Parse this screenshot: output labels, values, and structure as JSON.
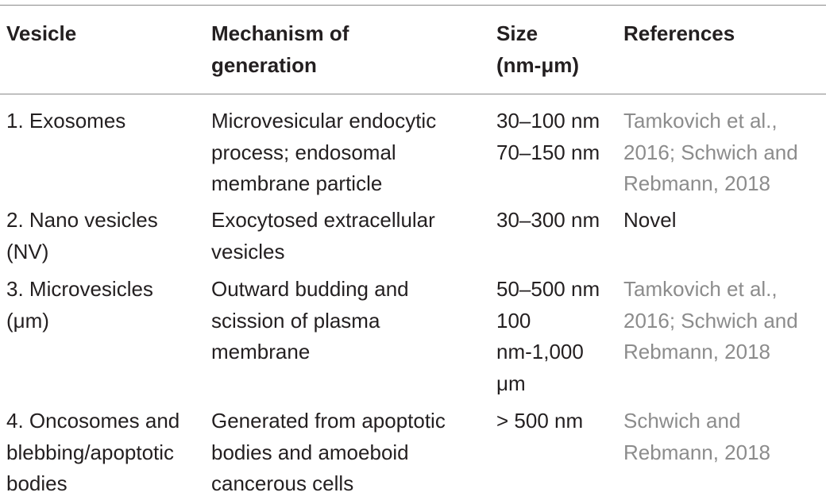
{
  "headers": {
    "vesicle": "Vesicle",
    "mechanism": "Mechanism of\ngeneration",
    "size": "Size\n(nm-μm)",
    "references": "References"
  },
  "rows": [
    {
      "vesicle": "1. Exosomes",
      "mechanism": "Microvesicular endocytic\nprocess; endosomal\nmembrane particle",
      "size": "30–100 nm\n70–150 nm",
      "references": "Tamkovich et al.,\n2016; Schwich and\nRebmann, 2018"
    },
    {
      "vesicle": "2. Nano vesicles\n(NV)",
      "mechanism": "Exocytosed extracellular\nvesicles",
      "size": "30–300 nm",
      "references": "Novel"
    },
    {
      "vesicle": "3. Microvesicles\n(μm)",
      "mechanism": "Outward budding and\nscission of plasma\nmembrane",
      "size": "50–500 nm\n100\nnm-1,000\nμm",
      "references": "Tamkovich et al.,\n2016; Schwich and\nRebmann, 2018"
    },
    {
      "vesicle": "4. Oncosomes and\nblebbing/apoptotic\nbodies",
      "mechanism": "Generated from apoptotic\nbodies and amoeboid\ncancerous cells",
      "size": "> 500 nm",
      "references": "Schwich and\nRebmann, 2018"
    }
  ],
  "colors": {
    "text": "#231f20",
    "reference_link": "#8c8c8c",
    "rule": "#8a8a8a"
  }
}
